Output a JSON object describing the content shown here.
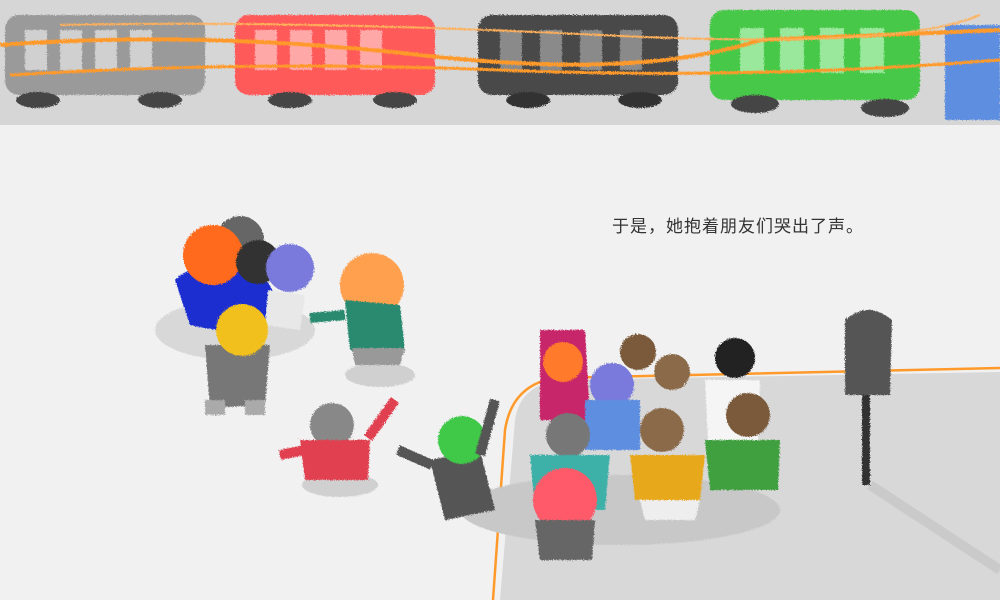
{
  "story": {
    "caption": "于是，她抱着朋友们哭出了声。"
  },
  "illustration": {
    "bus_colors": [
      "#9a9a9a",
      "#ff5a5a",
      "#4a4a4a",
      "#46c84a"
    ],
    "accent_color": "#ff9a2a",
    "child_colors": [
      "#ff6a1a",
      "#1a2fd0",
      "#f2c01e",
      "#2a8a70",
      "#e04050",
      "#7a7adc",
      "#40c84a",
      "#c8286a",
      "#e8a81a",
      "#40a040"
    ]
  }
}
